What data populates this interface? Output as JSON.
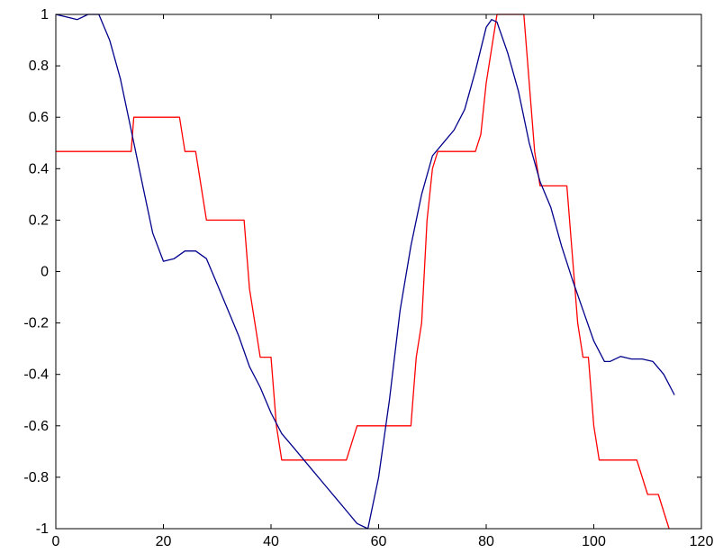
{
  "chart_data": {
    "type": "line",
    "title": "",
    "xlabel": "",
    "ylabel": "",
    "xlim": [
      0,
      120
    ],
    "ylim": [
      -1,
      1
    ],
    "grid": false,
    "x_ticks": [
      0,
      20,
      40,
      60,
      80,
      100,
      120
    ],
    "x_tick_labels": [
      "0",
      "20",
      "40",
      "60",
      "80",
      "100",
      "120"
    ],
    "y_ticks": [
      -1,
      -0.8,
      -0.6,
      -0.4,
      -0.2,
      0,
      0.2,
      0.4,
      0.6,
      0.8,
      1
    ],
    "y_tick_labels": [
      "-1",
      "-0.8",
      "-0.6",
      "-0.4",
      "-0.2",
      "0",
      "0.2",
      "0.4",
      "0.6",
      "0.8",
      "1"
    ],
    "series": [
      {
        "color": "#ff0000",
        "line_style": "step",
        "points": [
          [
            0,
            0.467
          ],
          [
            14,
            0.467
          ],
          [
            14.5,
            0.6
          ],
          [
            23,
            0.6
          ],
          [
            24,
            0.467
          ],
          [
            26,
            0.467
          ],
          [
            27,
            0.333
          ],
          [
            28,
            0.2
          ],
          [
            35,
            0.2
          ],
          [
            36,
            -0.067
          ],
          [
            37,
            -0.2
          ],
          [
            38,
            -0.333
          ],
          [
            40,
            -0.333
          ],
          [
            41,
            -0.6
          ],
          [
            42,
            -0.733
          ],
          [
            54,
            -0.733
          ],
          [
            55,
            -0.667
          ],
          [
            56,
            -0.6
          ],
          [
            66,
            -0.6
          ],
          [
            66.5,
            -0.467
          ],
          [
            67,
            -0.333
          ],
          [
            67.5,
            -0.267
          ],
          [
            68,
            -0.2
          ],
          [
            69,
            0.2
          ],
          [
            70,
            0.4
          ],
          [
            71,
            0.467
          ],
          [
            78,
            0.467
          ],
          [
            79,
            0.533
          ],
          [
            80,
            0.733
          ],
          [
            81,
            0.867
          ],
          [
            82,
            1.0
          ],
          [
            87,
            1.0
          ],
          [
            88,
            0.733
          ],
          [
            89,
            0.467
          ],
          [
            90,
            0.333
          ],
          [
            95,
            0.333
          ],
          [
            96,
            0.067
          ],
          [
            97,
            -0.2
          ],
          [
            98,
            -0.333
          ],
          [
            99,
            -0.333
          ],
          [
            100,
            -0.6
          ],
          [
            101,
            -0.733
          ],
          [
            104,
            -0.733
          ],
          [
            105,
            -0.733
          ],
          [
            108,
            -0.733
          ],
          [
            110,
            -0.867
          ],
          [
            112,
            -0.867
          ],
          [
            114,
            -1.0
          ]
        ]
      },
      {
        "color": "#00008b",
        "line_style": "solid",
        "points": [
          [
            0,
            1.0
          ],
          [
            2,
            0.99
          ],
          [
            4,
            0.98
          ],
          [
            6,
            1.0
          ],
          [
            8,
            1.0
          ],
          [
            10,
            0.9
          ],
          [
            12,
            0.75
          ],
          [
            14,
            0.55
          ],
          [
            16,
            0.35
          ],
          [
            18,
            0.15
          ],
          [
            20,
            0.04
          ],
          [
            22,
            0.05
          ],
          [
            24,
            0.08
          ],
          [
            26,
            0.08
          ],
          [
            28,
            0.05
          ],
          [
            30,
            -0.05
          ],
          [
            32,
            -0.15
          ],
          [
            34,
            -0.25
          ],
          [
            36,
            -0.37
          ],
          [
            38,
            -0.45
          ],
          [
            40,
            -0.55
          ],
          [
            42,
            -0.63
          ],
          [
            44,
            -0.68
          ],
          [
            46,
            -0.73
          ],
          [
            48,
            -0.78
          ],
          [
            50,
            -0.83
          ],
          [
            52,
            -0.88
          ],
          [
            54,
            -0.93
          ],
          [
            56,
            -0.98
          ],
          [
            58,
            -1.0
          ],
          [
            60,
            -0.8
          ],
          [
            62,
            -0.5
          ],
          [
            64,
            -0.15
          ],
          [
            66,
            0.1
          ],
          [
            68,
            0.3
          ],
          [
            70,
            0.45
          ],
          [
            72,
            0.5
          ],
          [
            74,
            0.55
          ],
          [
            76,
            0.63
          ],
          [
            78,
            0.78
          ],
          [
            80,
            0.95
          ],
          [
            81,
            0.98
          ],
          [
            82,
            0.97
          ],
          [
            84,
            0.85
          ],
          [
            86,
            0.7
          ],
          [
            88,
            0.5
          ],
          [
            90,
            0.35
          ],
          [
            92,
            0.25
          ],
          [
            94,
            0.1
          ],
          [
            96,
            -0.03
          ],
          [
            98,
            -0.15
          ],
          [
            100,
            -0.27
          ],
          [
            102,
            -0.35
          ],
          [
            103,
            -0.35
          ],
          [
            105,
            -0.33
          ],
          [
            107,
            -0.34
          ],
          [
            109,
            -0.34
          ],
          [
            111,
            -0.35
          ],
          [
            113,
            -0.4
          ],
          [
            115,
            -0.48
          ]
        ]
      }
    ]
  }
}
